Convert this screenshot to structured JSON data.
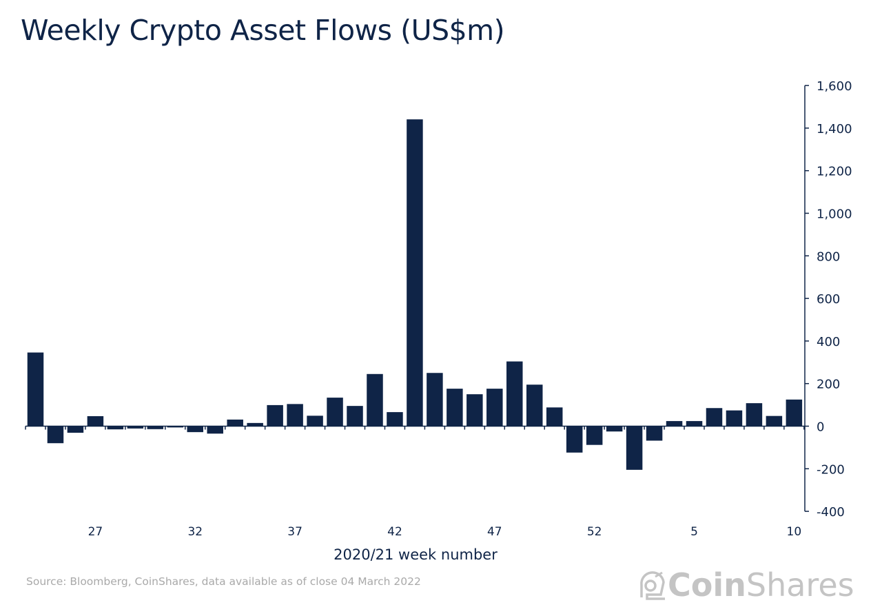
{
  "chart_data": {
    "type": "bar",
    "title": "Weekly Crypto Asset Flows (US$m)",
    "xlabel": "2020/21 week number",
    "ylabel": "",
    "ylim": [
      -400,
      1600
    ],
    "yticks": [
      -400,
      -200,
      0,
      200,
      400,
      600,
      800,
      1000,
      1200,
      1400,
      1600
    ],
    "ytick_labels": [
      "-400",
      "-200",
      "0",
      "200",
      "400",
      "600",
      "800",
      "1,000",
      "1,200",
      "1,400",
      "1,600"
    ],
    "y_axis_position": "right",
    "grid": false,
    "bar_color": "#0f2447",
    "categories": [
      "24",
      "25",
      "26",
      "27",
      "28",
      "29",
      "30",
      "31",
      "32",
      "33",
      "34",
      "35",
      "36",
      "37",
      "38",
      "39",
      "40",
      "41",
      "42",
      "43",
      "44",
      "45",
      "46",
      "47",
      "48",
      "49",
      "50",
      "51",
      "52",
      "1",
      "2",
      "3",
      "4",
      "5",
      "6",
      "7",
      "8",
      "9",
      "10"
    ],
    "xtick_labels": [
      "27",
      "32",
      "37",
      "42",
      "47",
      "52",
      "5",
      "10"
    ],
    "values": [
      346,
      -80,
      -31,
      47,
      -15,
      -11,
      -14,
      -6,
      -28,
      -35,
      31,
      15,
      99,
      104,
      49,
      134,
      95,
      245,
      66,
      1441,
      250,
      176,
      150,
      176,
      304,
      195,
      88,
      -124,
      -88,
      -25,
      -205,
      -68,
      24,
      24,
      85,
      74,
      108,
      48,
      125
    ]
  },
  "source": "Source: Bloomberg, CoinShares, data available as of close 04 March 2022",
  "logo": {
    "bold": "Coin",
    "light": "Shares"
  }
}
